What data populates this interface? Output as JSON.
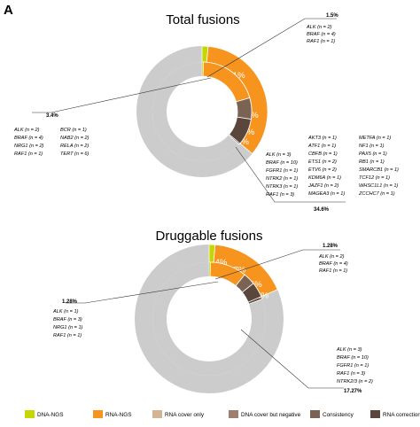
{
  "panel_letter": "A",
  "legend": [
    {
      "label": "DNA-NGS",
      "color": "#c5d600"
    },
    {
      "label": "RNA-NGS",
      "color": "#f7941d"
    },
    {
      "label": "RNA cover only",
      "color": "#d2b394"
    },
    {
      "label": "DNA cover but negative",
      "color": "#a07e6e"
    },
    {
      "label": "Consistency",
      "color": "#7a6352"
    },
    {
      "label": "RNA correction",
      "color": "#5a463a"
    }
  ],
  "chart_data": [
    {
      "type": "pie",
      "title": "Total fusions",
      "outer_ring": [
        {
          "category": "DNA-NGS",
          "percent": 1.5
        },
        {
          "category": "RNA-NGS",
          "percent": 34.6
        }
      ],
      "inner_ring": [
        {
          "category": "RNA cover only",
          "percent": 21
        },
        {
          "category": "DNA cover but negative",
          "percent": 7
        },
        {
          "category": "Consistency",
          "percent": 4
        },
        {
          "category": "RNA correction",
          "percent": 3
        }
      ],
      "slice_labels": [
        "21%",
        "7%",
        "4%",
        "3%"
      ],
      "annotations": {
        "dna_only": {
          "value": "1.5%",
          "genes": [
            "ALK (n = 2)",
            "BRAF (n = 4)",
            "RAF1 (n = 1)"
          ]
        },
        "both": {
          "value": "3.4%",
          "genes_col1": [
            "ALK (n = 2)",
            "BRAF (n = 4)",
            "NRG1 (n = 2)",
            "RAF1 (n = 1)"
          ],
          "genes_col2": [
            "BCR (n = 1)",
            "NAB2 (n = 2)",
            "RELA (n = 2)",
            "TERT (n = 6)"
          ]
        },
        "rna_only": {
          "value": "34.6%",
          "genes_col1": [
            "ALK (n = 3)",
            "BRAF (n = 10)",
            "FGFR1 (n = 1)",
            "NTRK2 (n = 1)",
            "NTRK3 (n = 1)",
            "RAF1 (n = 3)"
          ],
          "genes_col2": [
            "AKT3 (n = 1)",
            "ATF1 (n = 1)",
            "CBFB (n = 1)",
            "ETS1 (n = 2)",
            "ETV6 (n = 2)",
            "KDM6A (n = 1)",
            "JAZF1 (n = 2)",
            "MAGEA3 (n = 1)"
          ],
          "genes_col3": [
            "METFA (n = 1)",
            "NF1 (n = 1)",
            "PAX5 (n = 1)",
            "RB1 (n = 1)",
            "SMARCB1 (n = 1)",
            "TCF12 (n = 1)",
            "WHSC1L1 (n = 1)",
            "ZCCHC7 (n = 1)"
          ]
        }
      }
    },
    {
      "type": "pie",
      "title": "Druggable fusions",
      "outer_ring": [
        {
          "category": "DNA-NGS",
          "percent": 1.28
        },
        {
          "category": "RNA-NGS",
          "percent": 17.27
        }
      ],
      "inner_ring": [
        {
          "category": "RNA cover only",
          "percent": 4
        },
        {
          "category": "DNA cover but negative",
          "percent": 7
        },
        {
          "category": "Consistency",
          "percent": 5
        },
        {
          "category": "RNA correction",
          "percent": 2
        }
      ],
      "slice_labels": [
        "4%",
        "7%",
        "5%",
        "2%"
      ],
      "annotations": {
        "dna_only": {
          "value": "1.28%",
          "genes": [
            "ALK (n = 2)",
            "BRAF (n = 4)",
            "RAF1 (n = 1)"
          ]
        },
        "both": {
          "value": "1.28%",
          "genes": [
            "ALK (n = 1)",
            "BRAF (n = 3)",
            "NRG1 (n = 1)",
            "RAF1 (n = 1)"
          ]
        },
        "rna_only": {
          "value": "17.27%",
          "genes": [
            "ALK (n = 3)",
            "BRAF (n = 10)",
            "FGFR1 (n = 1)",
            "RAF1 (n = 3)",
            "NTRK2/3 (n = 2)"
          ]
        }
      }
    }
  ]
}
